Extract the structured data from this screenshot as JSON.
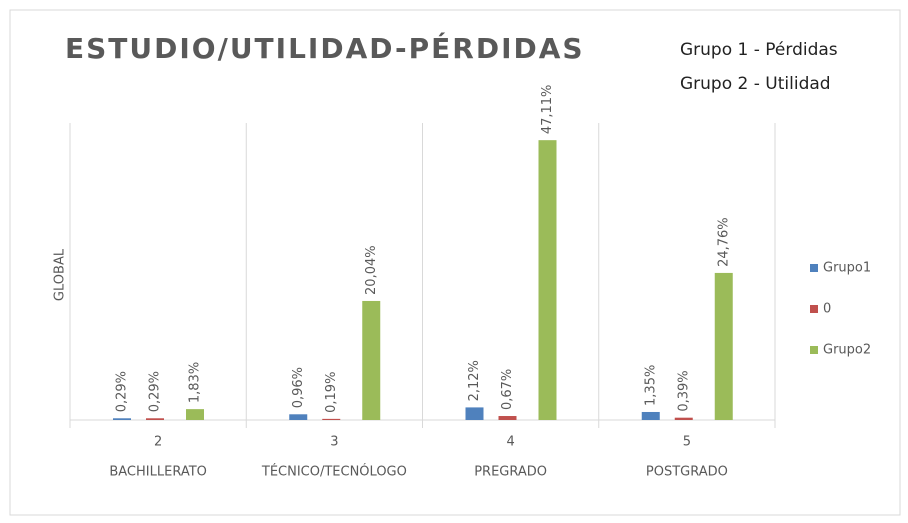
{
  "chart_data": {
    "type": "bar",
    "title": "ESTUDIO/UTILIDAD-PÉRDIDAS",
    "annotations": [
      "Grupo 1 - Pérdidas",
      "Grupo 2 - Utilidad"
    ],
    "y_label": "GLOBAL",
    "categories": [
      "2",
      "3",
      "4",
      "5"
    ],
    "category_labels": [
      "BACHILLERATO",
      "TÉCNICO/TECNÓLOGO",
      "PREGRADO",
      "POSTGRADO"
    ],
    "series": [
      {
        "name": "Grupo1",
        "color": "#4f81bd",
        "values": [
          0.29,
          0.96,
          2.12,
          1.35
        ],
        "value_labels": [
          "0,29%",
          "0,96%",
          "2,12%",
          "1,35%"
        ]
      },
      {
        "name": "0",
        "color": "#c0504d",
        "values": [
          0.29,
          0.19,
          0.67,
          0.39
        ],
        "value_labels": [
          "0,29%",
          "0,19%",
          "0,67%",
          "0,39%"
        ]
      },
      {
        "name": "Grupo2",
        "color": "#9bbb59",
        "values": [
          1.83,
          20.04,
          47.11,
          24.76
        ],
        "value_labels": [
          "1,83%",
          "20,04%",
          "47,11%",
          "24,76%"
        ]
      }
    ],
    "ylim": [
      0,
      50
    ],
    "legend": "right"
  }
}
